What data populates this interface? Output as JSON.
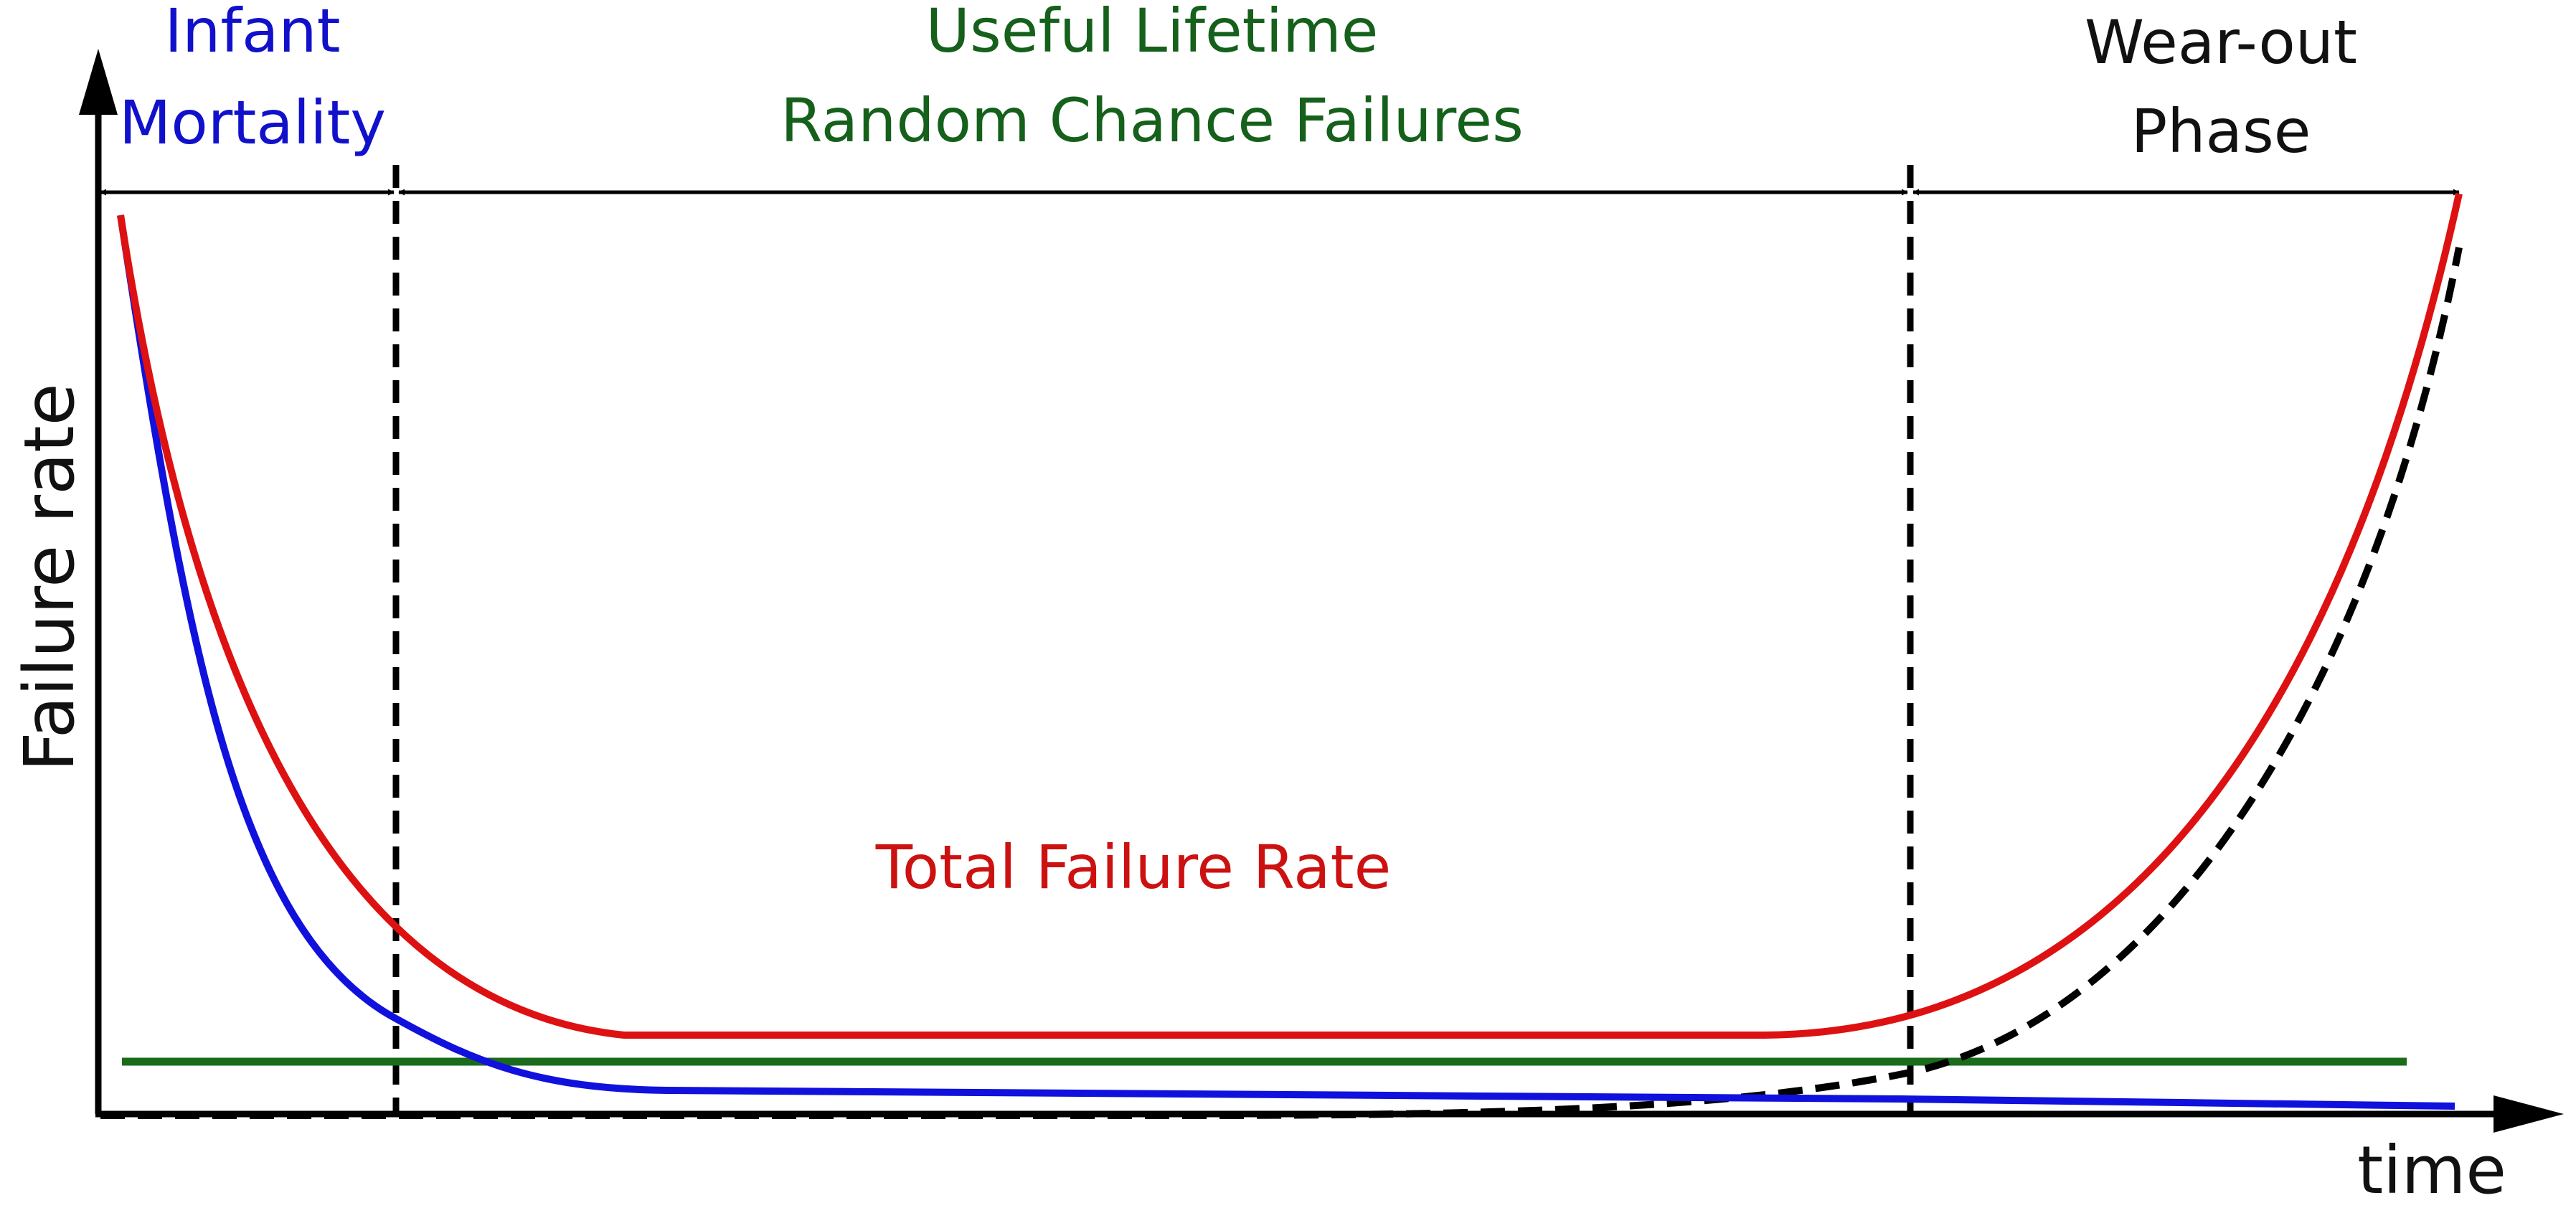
{
  "diagram": {
    "axes": {
      "y_label": "Failure rate",
      "x_label": "time"
    },
    "phases": [
      {
        "lines": [
          "Infant",
          "Mortality"
        ],
        "color": "#1111cc"
      },
      {
        "lines": [
          "Useful Lifetime",
          "Random Chance Failures"
        ],
        "color": "#15601b"
      },
      {
        "lines": [
          "Wear-out",
          "Phase"
        ],
        "color": "#111111"
      }
    ],
    "curves": [
      {
        "label": "Total Failure Rate",
        "color": "#dd1111",
        "style": "solid"
      },
      {
        "label": "",
        "color": "#1111dd",
        "style": "solid"
      },
      {
        "label": "",
        "color": "#1a6b1a",
        "style": "solid"
      },
      {
        "label": "",
        "color": "#000000",
        "style": "dashed"
      }
    ]
  }
}
